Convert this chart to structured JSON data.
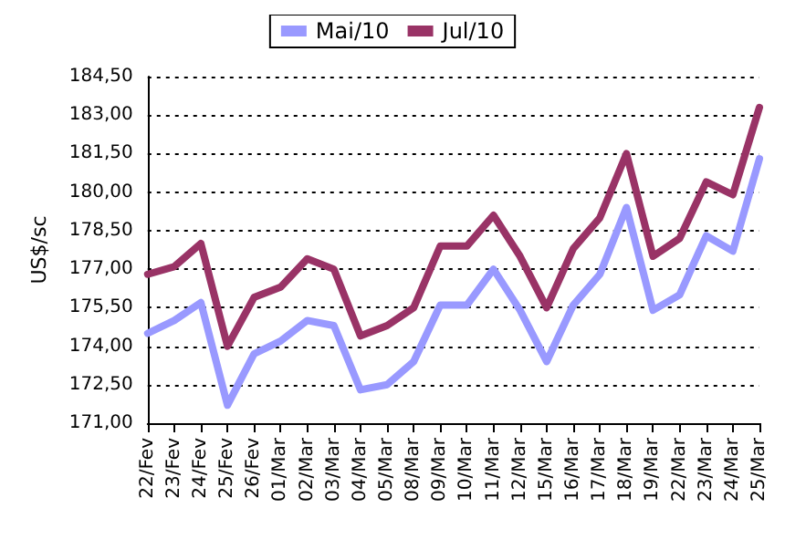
{
  "chart_data": {
    "type": "line",
    "ylabel": "US$/sc",
    "categories": [
      "22/Fev",
      "23/Fev",
      "24/Fev",
      "25/Fev",
      "26/Fev",
      "01/Mar",
      "02/Mar",
      "03/Mar",
      "04/Mar",
      "05/Mar",
      "08/Mar",
      "09/Mar",
      "10/Mar",
      "11/Mar",
      "12/Mar",
      "15/Mar",
      "16/Mar",
      "17/Mar",
      "18/Mar",
      "19/Mar",
      "22/Mar",
      "23/Mar",
      "24/Mar",
      "25/Mar"
    ],
    "series": [
      {
        "name": "Mai/10",
        "color": "#9999ff",
        "values": [
          174.5,
          175.0,
          175.7,
          171.7,
          173.7,
          174.2,
          175.0,
          174.8,
          172.3,
          172.5,
          173.4,
          175.6,
          175.6,
          177.0,
          175.4,
          173.4,
          175.6,
          176.8,
          179.4,
          175.4,
          176.0,
          178.3,
          177.7,
          181.3
        ]
      },
      {
        "name": "Jul/10",
        "color": "#993366",
        "values": [
          176.8,
          177.1,
          178.0,
          174.0,
          175.9,
          176.3,
          177.4,
          177.0,
          174.4,
          174.8,
          175.5,
          177.9,
          177.9,
          179.1,
          177.5,
          175.5,
          177.8,
          179.0,
          181.5,
          177.5,
          178.2,
          180.4,
          179.9,
          183.3
        ]
      }
    ],
    "ylim": [
      171,
      184.5
    ],
    "yticks": [
      {
        "value": 171,
        "label": "171,00"
      },
      {
        "value": 172.5,
        "label": "172,50"
      },
      {
        "value": 174,
        "label": "174,00"
      },
      {
        "value": 175.5,
        "label": "175,50"
      },
      {
        "value": 177,
        "label": "177,00"
      },
      {
        "value": 178.5,
        "label": "178,50"
      },
      {
        "value": 180,
        "label": "180,00"
      },
      {
        "value": 181.5,
        "label": "181,50"
      },
      {
        "value": 183,
        "label": "183,00"
      },
      {
        "value": 184.5,
        "label": "184,50"
      }
    ],
    "grid": "y",
    "legend": "top",
    "marker": "none",
    "line_style": "solid"
  }
}
